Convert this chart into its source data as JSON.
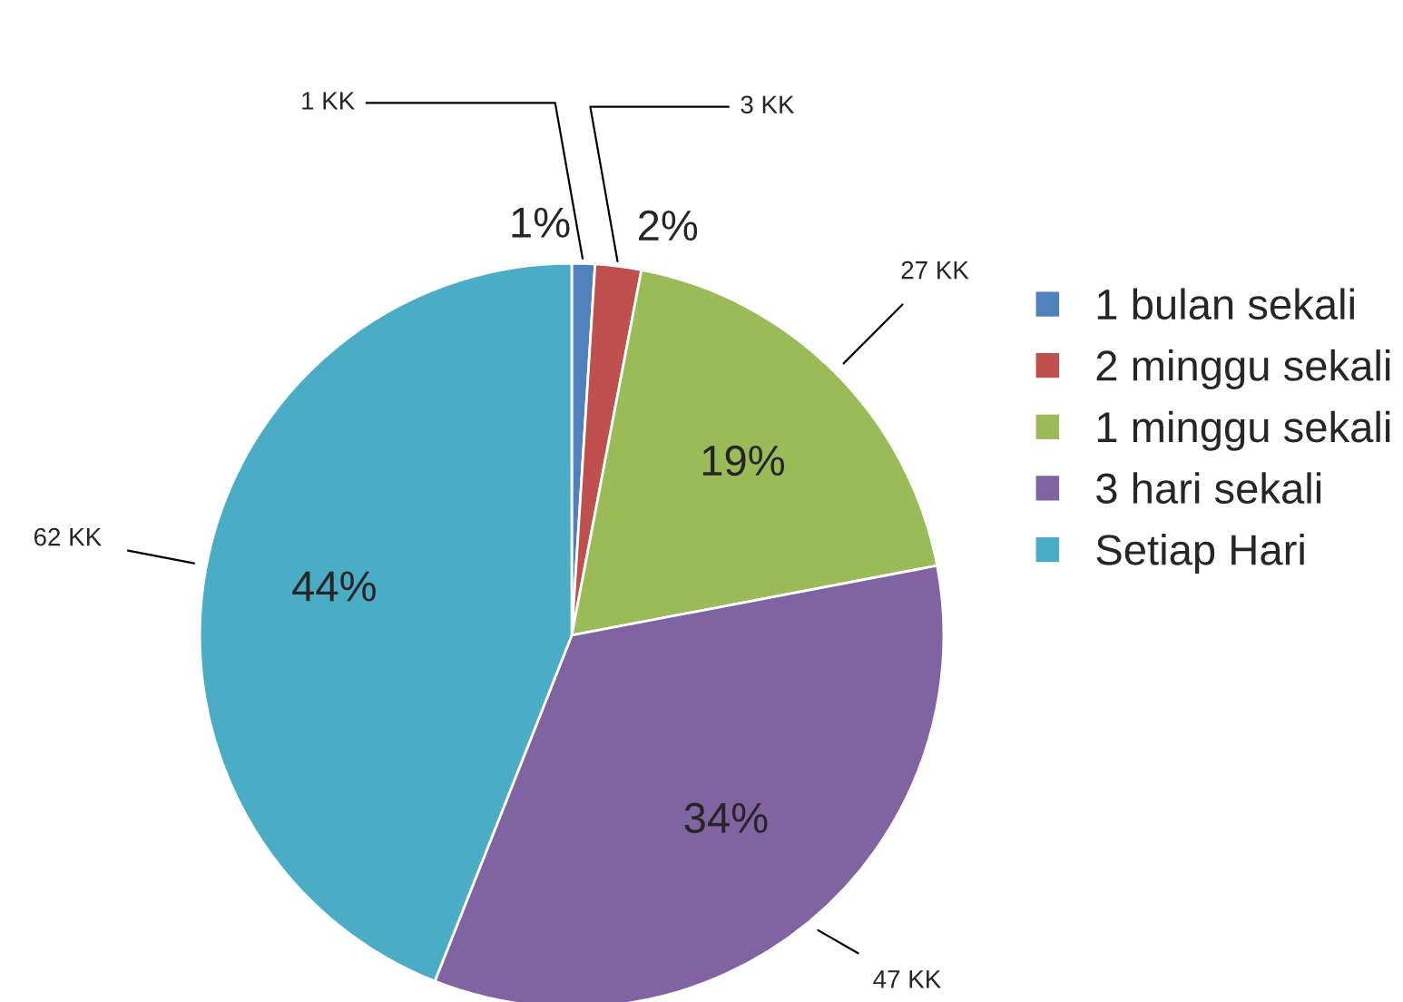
{
  "chart_data": {
    "type": "pie",
    "categories": [
      "1 bulan sekali",
      "2 minggu sekali",
      "1 minggu sekali",
      "3 hari sekali",
      "Setiap Hari"
    ],
    "values": [
      1,
      2,
      19,
      34,
      44
    ],
    "colors": [
      "#4f81bd",
      "#c0504d",
      "#9bbb59",
      "#8064a2",
      "#4bacc6"
    ],
    "value_labels": [
      "1%",
      "2%",
      "19%",
      "34%",
      "44%"
    ],
    "annotations": [
      "1 KK",
      "3 KK",
      "27 KK",
      "47 KK",
      "62 KK"
    ],
    "legend": "right"
  }
}
